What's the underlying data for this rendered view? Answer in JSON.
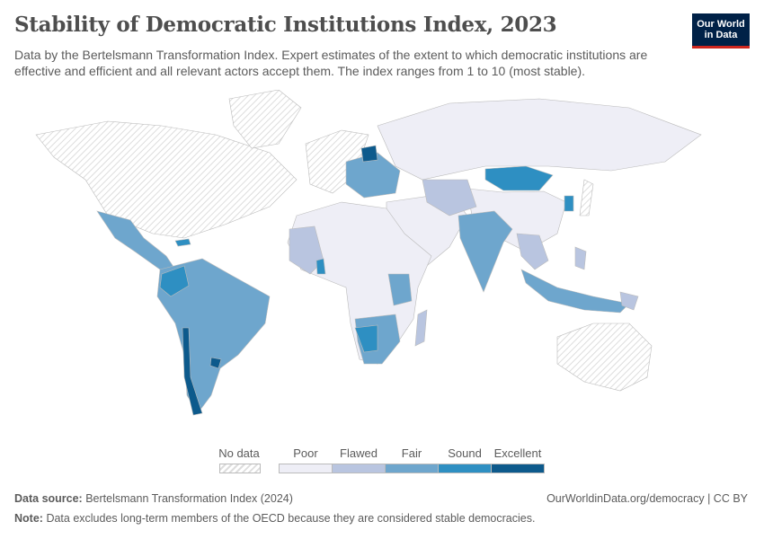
{
  "title": "Stability of Democratic Institutions Index, 2023",
  "subtitle": "Data by the Bertelsmann Transformation Index. Expert estimates of the extent to which democratic institutions are effective and efficient and all relevant actors accept them. The index ranges from 1 to 10 (most stable).",
  "logo": {
    "line1": "Our World",
    "line2": "in Data"
  },
  "legend": {
    "no_data": "No data",
    "categories": [
      "Poor",
      "Flawed",
      "Fair",
      "Sound",
      "Excellent"
    ]
  },
  "colors": {
    "no_data": "#e6e6e6",
    "Poor": "#eeeef6",
    "Flawed": "#b9c5e0",
    "Fair": "#6ea6cd",
    "Sound": "#2e8fc2",
    "Excellent": "#0d5a8c"
  },
  "footer": {
    "source_label": "Data source:",
    "source": "Bertelsmann Transformation Index (2024)",
    "url": "OurWorldinData.org/democracy | CC BY",
    "note_label": "Note:",
    "note": "Data excludes long-term members of the OECD because they are considered stable democracies."
  }
}
